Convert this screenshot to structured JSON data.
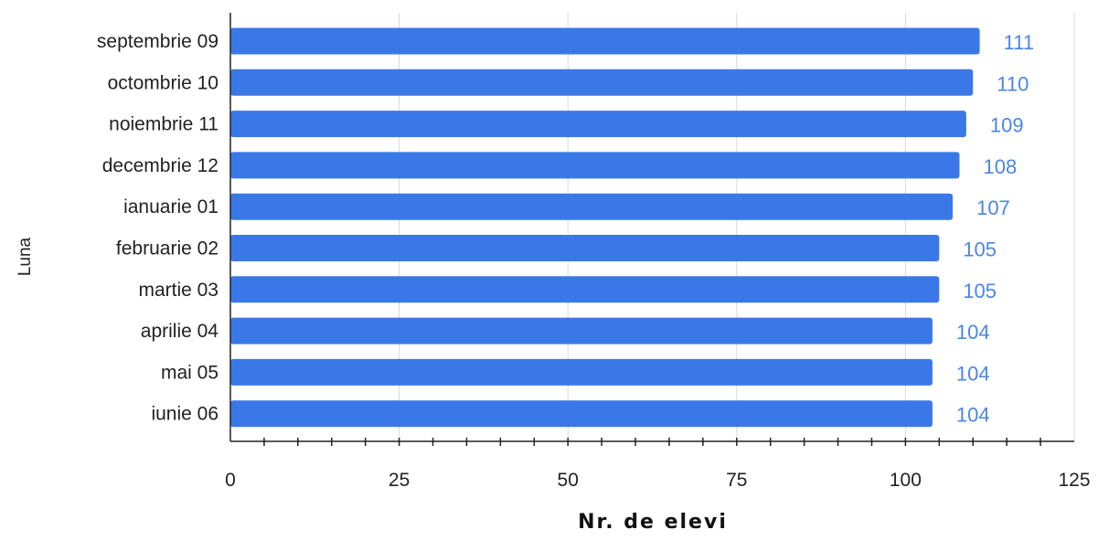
{
  "chart_data": {
    "type": "bar",
    "orientation": "horizontal",
    "xlabel": "Nr. de elevi",
    "ylabel": "Luna",
    "categories": [
      "septembrie 09",
      "octombrie 10",
      "noiembrie 11",
      "decembrie 12",
      "ianuarie 01",
      "februarie 02",
      "martie 03",
      "aprilie 04",
      "mai 05",
      "iunie 06"
    ],
    "values": [
      111,
      110,
      109,
      108,
      107,
      105,
      105,
      104,
      104,
      104
    ],
    "data_labels": [
      "111",
      "110",
      "109",
      "108",
      "107",
      "105",
      "105",
      "104",
      "104",
      "104"
    ],
    "xlim": [
      0,
      125
    ],
    "xticks": [
      0,
      25,
      50,
      75,
      100,
      125
    ],
    "xtick_labels": [
      "0",
      "25",
      "50",
      "75",
      "100",
      "125"
    ],
    "grid": true,
    "legend": "none",
    "colors": {
      "bar": "#3b78e7",
      "data_label": "#4a86e8",
      "gridline": "#d9d9d9",
      "axis": "#222222"
    }
  }
}
